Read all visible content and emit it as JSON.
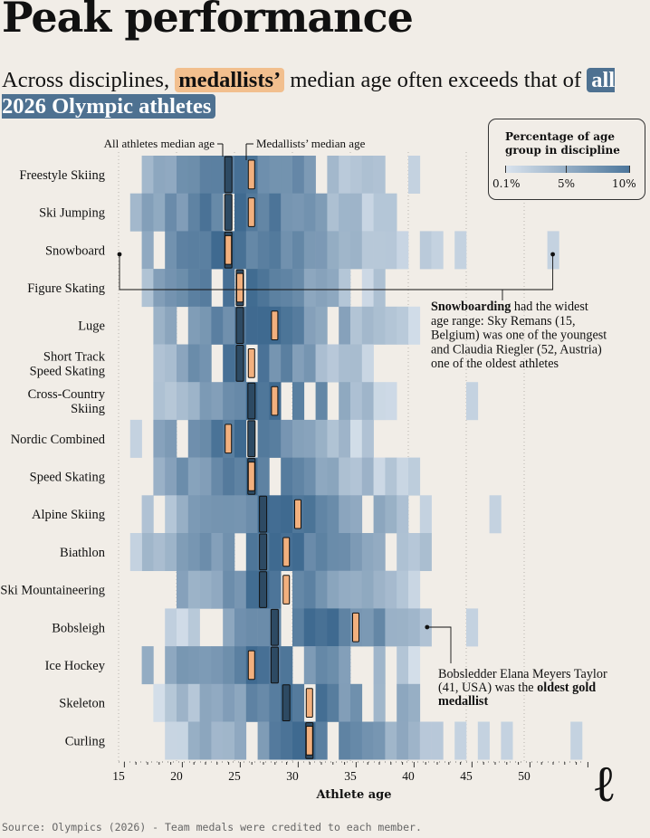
{
  "title": "Peak performance",
  "subtitle": {
    "part1": "Across disciplines, ",
    "highlight1": "medallists’",
    "part2": " median age often exceeds that of ",
    "highlight2": "all 2026 Olympic athletes"
  },
  "legend": {
    "title": "Percentage of age group in discipline",
    "labels": [
      "0.1%",
      "5%",
      "10%"
    ]
  },
  "annotations": {
    "all_median": "All athletes median age",
    "medallist_median": "Medallists’ median age",
    "snowboard_bold": "Snowboarding",
    "snowboard_rest": " had the widest age range: Sky Remans (15, Belgium) was one of the youngest and Claudia Riegler (52, Austria) one of the oldest athletes",
    "bobsleigh_rest": "Bobsledder Elana Meyers Taylor (41, USA) was the ",
    "bobsleigh_bold": "oldest gold medallist"
  },
  "source": "Source: Olympics (2026) - Team medals were credited to each member.",
  "logo": "ℓ",
  "colors": {
    "background": "#f1ede7",
    "heat_low": "#dbe4ee",
    "heat_high": "#3f6a90",
    "medallist_marker": "#f2b07e",
    "all_marker": "#2d4a63"
  },
  "chart_data": {
    "type": "heatmap",
    "xlabel": "Athlete age",
    "xlim": [
      15,
      55
    ],
    "x_ticks": [
      15,
      20,
      25,
      30,
      35,
      40,
      45,
      50
    ],
    "color_scale": [
      0.1,
      10
    ],
    "disciplines": [
      {
        "name": "Freestyle Skiing",
        "all_median": 24,
        "medallist_median": 26,
        "ages": [
          17,
          37
        ],
        "extra": [
          40
        ]
      },
      {
        "name": "Ski Jumping",
        "all_median": 24,
        "medallist_median": 26,
        "ages": [
          16,
          38
        ],
        "extra": []
      },
      {
        "name": "Snowboard",
        "all_median": 24,
        "medallist_median": 24,
        "ages": [
          15,
          42
        ],
        "extra": [
          44,
          52
        ]
      },
      {
        "name": "Figure Skating",
        "all_median": 25,
        "medallist_median": 25,
        "ages": [
          17,
          37
        ],
        "extra": []
      },
      {
        "name": "Luge",
        "all_median": 25,
        "medallist_median": 28,
        "ages": [
          18,
          40
        ],
        "extra": []
      },
      {
        "name": "Short Track Speed Skating",
        "all_median": 25,
        "medallist_median": 26,
        "ages": [
          18,
          36
        ],
        "extra": []
      },
      {
        "name": "Cross-Country Skiing",
        "all_median": 26,
        "medallist_median": 28,
        "ages": [
          18,
          38
        ],
        "extra": [
          45
        ]
      },
      {
        "name": "Nordic Combined",
        "all_median": 26,
        "medallist_median": 24,
        "ages": [
          18,
          37
        ],
        "extra": [
          16
        ]
      },
      {
        "name": "Speed Skating",
        "all_median": 26,
        "medallist_median": 26,
        "ages": [
          18,
          40
        ],
        "extra": []
      },
      {
        "name": "Alpine Skiing",
        "all_median": 27,
        "medallist_median": 30,
        "ages": [
          17,
          39
        ],
        "extra": [
          41,
          47
        ]
      },
      {
        "name": "Biathlon",
        "all_median": 27,
        "medallist_median": 29,
        "ages": [
          17,
          42
        ],
        "extra": [
          16
        ]
      },
      {
        "name": "Ski Mountaineering",
        "all_median": 27,
        "medallist_median": 29,
        "ages": [
          19,
          40
        ],
        "extra": []
      },
      {
        "name": "Bobsleigh",
        "all_median": 28,
        "medallist_median": 35,
        "ages": [
          19,
          41
        ],
        "extra": [
          45
        ]
      },
      {
        "name": "Ice Hockey",
        "all_median": 28,
        "medallist_median": 26,
        "ages": [
          16,
          40
        ],
        "extra": []
      },
      {
        "name": "Skeleton",
        "all_median": 29,
        "medallist_median": 31,
        "ages": [
          18,
          40
        ],
        "extra": []
      },
      {
        "name": "Curling",
        "all_median": 31,
        "medallist_median": 31,
        "ages": [
          19,
          42
        ],
        "extra": [
          44,
          46,
          48,
          54
        ]
      }
    ]
  }
}
